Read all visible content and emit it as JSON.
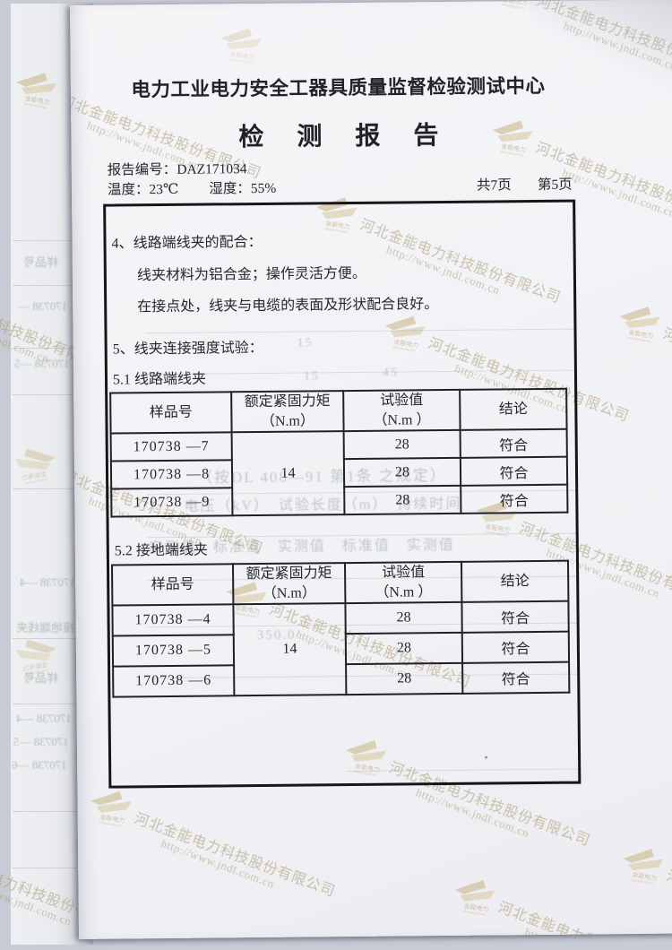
{
  "header": {
    "org": "电力工业电力安全工器具质量监督检验测试中心",
    "title": "检 测 报 告",
    "report_no_label": "报告编号：",
    "report_no": "DAZ171034",
    "temperature": "温度：23℃",
    "humidity": "湿度：55%",
    "pages_total": "共7页",
    "page_current": "第5页"
  },
  "sections": {
    "s4_title": "4、线路端线夹的配合：",
    "s4_line1": "线夹材料为铝合金；操作灵活方便。",
    "s4_line2": "在接点处，线夹与电缆的表面及形状配合良好。",
    "s5_title": "5、线夹连接强度试验：",
    "s51_title": "5.1 线路端线夹",
    "s52_title": "5.2 接地端线夹"
  },
  "tables": [
    {
      "name": "line-end-clamp-table",
      "headers": [
        [
          "样品号"
        ],
        [
          "额定紧固力矩",
          "（N.m）"
        ],
        [
          "试验值",
          "（N.m ）"
        ],
        [
          "结论"
        ]
      ],
      "rated_torque": "14",
      "rows": [
        {
          "sample": "170738 —7",
          "value": "28",
          "result": "符合"
        },
        {
          "sample": "170738 —8",
          "value": "28",
          "result": "符合"
        },
        {
          "sample": "170738 —9",
          "value": "28",
          "result": "符合"
        }
      ]
    },
    {
      "name": "ground-end-clamp-table",
      "headers": [
        [
          "样品号"
        ],
        [
          "额定紧固力矩",
          "（N.m）"
        ],
        [
          "试验值",
          "（N.m ）"
        ],
        [
          "结论"
        ]
      ],
      "rated_torque": "14",
      "rows": [
        {
          "sample": "170738 —4",
          "value": "28",
          "result": "符合"
        },
        {
          "sample": "170738 —5",
          "value": "28",
          "result": "符合"
        },
        {
          "sample": "170738 —6",
          "value": "28",
          "result": "符合"
        }
      ]
    }
  ],
  "watermark": {
    "company": "河北金能电力科技股份有限公司",
    "url": "http://www.jndl.com.cn",
    "logo_text": "金能电力",
    "logo_subtext": "JINNENGDIANLI"
  },
  "bleedthrough": {
    "fragments": [
      "（按DL 408—91 第1条 之规定）",
      "电压（kV）　试验长度（m）　持续时间",
      "实测值　标准值　实测值　标准值　实测值",
      "350.0",
      "15",
      "15",
      "45"
    ],
    "strip_fragments": [
      "样品号",
      "170738 —",
      "170738 —5",
      "170738 —4",
      "2 接地端线夹",
      "样品号",
      "170738 —4",
      "170738 —5",
      "170738 —6"
    ]
  }
}
